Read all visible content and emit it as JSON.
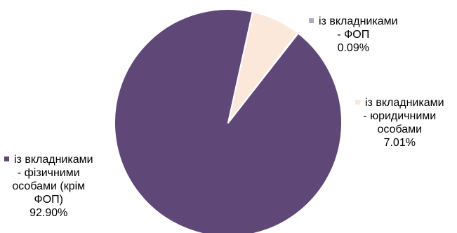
{
  "chart_data": {
    "type": "pie",
    "slices": [
      {
        "key": "phys",
        "label_lines": [
          "із вкладниками",
          "- фізичними",
          "особами (крім",
          "ФОП)"
        ],
        "value_label": "92.90%",
        "value": 92.9,
        "color": "#5f4778"
      },
      {
        "key": "legal",
        "label_lines": [
          "із вкладниками",
          "- юридичними",
          "особами"
        ],
        "value_label": "7.01%",
        "value": 7.01,
        "color": "#fce8da"
      },
      {
        "key": "fop",
        "label_lines": [
          "із вкладниками",
          "- ФОП"
        ],
        "value_label": "0.09%",
        "value": 0.09,
        "color": "#b3a6c6"
      }
    ],
    "start_angle_deg": 38,
    "direction": "clockwise",
    "legend": "data-labels-beside-slices"
  }
}
